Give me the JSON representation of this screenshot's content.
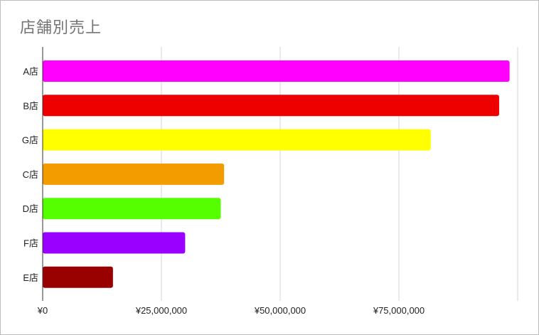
{
  "chart_data": {
    "type": "bar",
    "orientation": "horizontal",
    "title": "店舗別売上",
    "xlabel": "",
    "ylabel": "",
    "categories": [
      "A店",
      "B店",
      "G店",
      "C店",
      "D店",
      "F店",
      "E店"
    ],
    "values": [
      98300000,
      96100000,
      81700000,
      38200000,
      37500000,
      30000000,
      14800000
    ],
    "colors": [
      "#ff00ff",
      "#ee0000",
      "#ffff00",
      "#f39c00",
      "#55ff00",
      "#9900ff",
      "#990000"
    ],
    "xlim": [
      0,
      100000000
    ],
    "x_ticks": [
      "¥0",
      "¥25,000,000",
      "¥50,000,000",
      "¥75,000,000"
    ],
    "grid": true,
    "legend": "none"
  }
}
